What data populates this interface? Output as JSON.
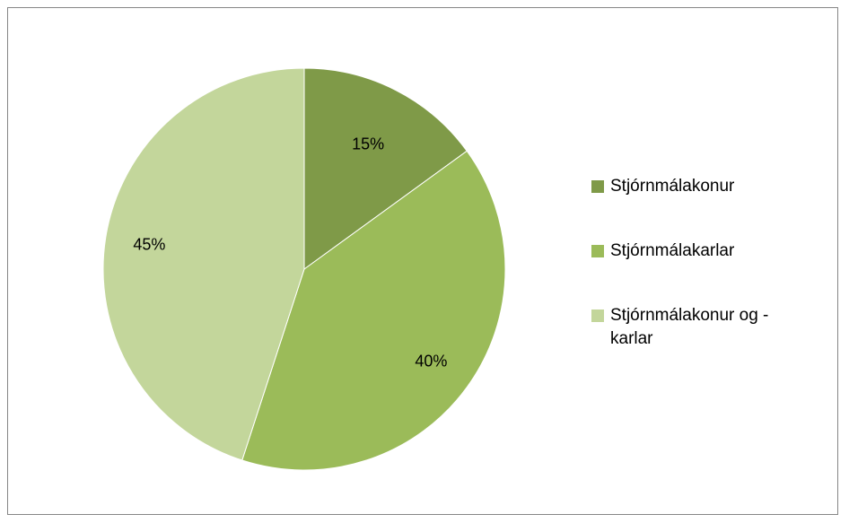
{
  "chart_data": {
    "type": "pie",
    "categories": [
      "Stjórnmálakonur",
      "Stjórnmálakarlar",
      "Stjórnmálakonur og -karlar"
    ],
    "values": [
      15,
      40,
      45
    ],
    "labels": [
      "15%",
      "40%",
      "45%"
    ],
    "colors": [
      "#7f9a48",
      "#9bbb59",
      "#c3d69b"
    ],
    "legend_position": "right",
    "start_angle": "top, clockwise"
  },
  "legend": {
    "items": [
      {
        "label": "Stjórnmálakonur",
        "color": "#7f9a48"
      },
      {
        "label": "Stjórnmálakarlar",
        "color": "#9bbb59"
      },
      {
        "label": "Stjórnmálakonur og -\nkarlar",
        "color": "#c3d69b"
      }
    ]
  }
}
